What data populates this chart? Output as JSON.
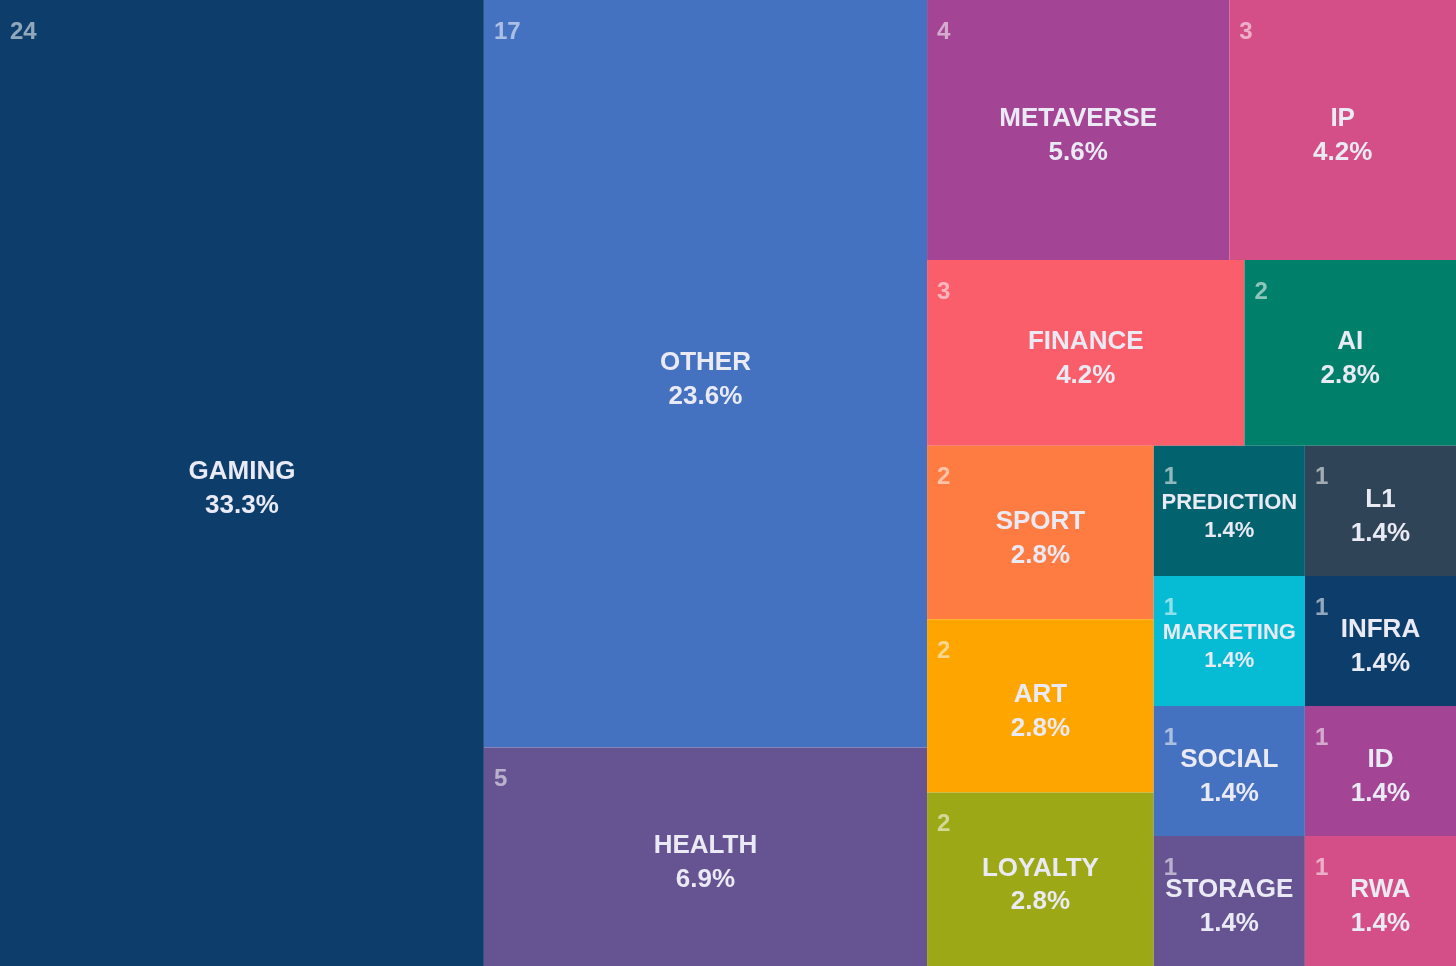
{
  "chart_data": {
    "type": "other",
    "categories": [
      "GAMING",
      "OTHER",
      "HEALTH",
      "METAVERSE",
      "IP",
      "FINANCE",
      "AI",
      "SPORT",
      "ART",
      "LOYALTY",
      "PREDICTION",
      "L1",
      "MARKETING",
      "INFRA",
      "SOCIAL",
      "STORAGE",
      "ID",
      "RWA"
    ],
    "values": [
      33.3,
      23.6,
      6.9,
      5.6,
      4.2,
      4.2,
      2.8,
      2.8,
      2.8,
      2.8,
      1.4,
      1.4,
      1.4,
      1.4,
      1.4,
      1.4,
      1.4,
      1.4
    ],
    "value_labels": [
      "33.3%",
      "23.6%",
      "6.9%",
      "5.6%",
      "4.2%",
      "4.2%",
      "2.8%",
      "2.8%",
      "2.8%",
      "2.8%",
      "1.4%",
      "1.4%",
      "1.4%",
      "1.4%",
      "1.4%",
      "1.4%",
      "1.4%",
      "1.4%"
    ],
    "annotations": [
      {
        "text": "24",
        "x": "GAMING"
      },
      {
        "text": "17",
        "x": "OTHER"
      },
      {
        "text": "5",
        "x": "HEALTH"
      },
      {
        "text": "4",
        "x": "METAVERSE"
      },
      {
        "text": "3",
        "x": "IP"
      },
      {
        "text": "3",
        "x": "FINANCE"
      },
      {
        "text": "2",
        "x": "AI"
      },
      {
        "text": "2",
        "x": "SPORT"
      },
      {
        "text": "2",
        "x": "ART"
      },
      {
        "text": "2",
        "x": "LOYALTY"
      },
      {
        "text": "1",
        "x": "PREDICTION"
      },
      {
        "text": "1",
        "x": "L1"
      },
      {
        "text": "1",
        "x": "MARKETING"
      },
      {
        "text": "1",
        "x": "INFRA"
      },
      {
        "text": "1",
        "x": "SOCIAL"
      },
      {
        "text": "1",
        "x": "STORAGE"
      },
      {
        "text": "1",
        "x": "ID"
      },
      {
        "text": "1",
        "x": "RWA"
      }
    ],
    "colors": [
      "#0d3e6b",
      "#4472c0",
      "#665391",
      "#a34494",
      "#d44f87",
      "#fb5e6b",
      "#007f6b",
      "#fe7b42",
      "#fea500",
      "#9ca816",
      "#02636f",
      "#2f4557",
      "#05bcd4",
      "#0d3e6b",
      "#4472c0",
      "#665391",
      "#a34494",
      "#d44f87"
    ]
  }
}
